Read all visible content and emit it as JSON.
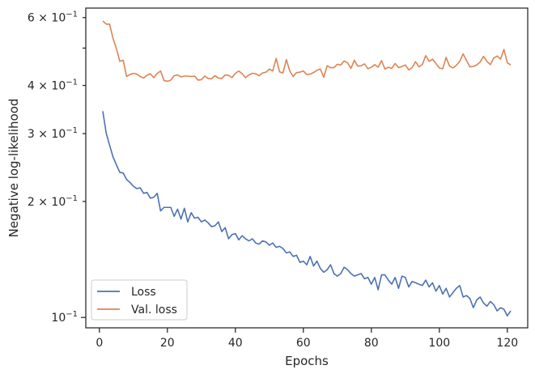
{
  "chart_data": {
    "type": "line",
    "title": "",
    "xlabel": "Epochs",
    "ylabel": "Negative log-likelihood",
    "yscale": "log",
    "xlim": [
      -4.0,
      126.0
    ],
    "ylim": [
      0.094,
      0.635
    ],
    "grid": false,
    "legend_position": "lower-left",
    "x_ticks": [
      0,
      20,
      40,
      60,
      80,
      100,
      120
    ],
    "y_ticks": [
      {
        "value": 0.1,
        "mantissa": "10",
        "exp": "−1",
        "labeled": true
      },
      {
        "value": 0.2,
        "mantissa": "2 × 10",
        "exp": "−1",
        "labeled": true
      },
      {
        "value": 0.3,
        "mantissa": "3 × 10",
        "exp": "−1",
        "labeled": true
      },
      {
        "value": 0.4,
        "mantissa": "4 × 10",
        "exp": "−1",
        "labeled": true
      },
      {
        "value": 0.5,
        "mantissa": "",
        "exp": "",
        "labeled": false
      },
      {
        "value": 0.6,
        "mantissa": "6 × 10",
        "exp": "−1",
        "labeled": true
      }
    ],
    "x": [
      1,
      2,
      3,
      4,
      5,
      6,
      7,
      8,
      9,
      10,
      11,
      12,
      13,
      14,
      15,
      16,
      17,
      18,
      19,
      20,
      21,
      22,
      23,
      24,
      25,
      26,
      27,
      28,
      29,
      30,
      31,
      32,
      33,
      34,
      35,
      36,
      37,
      38,
      39,
      40,
      41,
      42,
      43,
      44,
      45,
      46,
      47,
      48,
      49,
      50,
      51,
      52,
      53,
      54,
      55,
      56,
      57,
      58,
      59,
      60,
      61,
      62,
      63,
      64,
      65,
      66,
      67,
      68,
      69,
      70,
      71,
      72,
      73,
      74,
      75,
      76,
      77,
      78,
      79,
      80,
      81,
      82,
      83,
      84,
      85,
      86,
      87,
      88,
      89,
      90,
      91,
      92,
      93,
      94,
      95,
      96,
      97,
      98,
      99,
      100,
      101,
      102,
      103,
      104,
      105,
      106,
      107,
      108,
      109,
      110,
      111,
      112,
      113,
      114,
      115,
      116,
      117,
      118,
      119,
      120,
      121
    ],
    "series": [
      {
        "name": "Loss",
        "color": "#4c72b0",
        "values": [
          0.343,
          0.301,
          0.28,
          0.261,
          0.249,
          0.238,
          0.237,
          0.228,
          0.224,
          0.219,
          0.216,
          0.217,
          0.21,
          0.211,
          0.204,
          0.205,
          0.21,
          0.189,
          0.193,
          0.193,
          0.193,
          0.183,
          0.191,
          0.18,
          0.192,
          0.177,
          0.187,
          0.181,
          0.182,
          0.177,
          0.179,
          0.176,
          0.172,
          0.173,
          0.177,
          0.167,
          0.171,
          0.16,
          0.164,
          0.165,
          0.159,
          0.163,
          0.16,
          0.158,
          0.16,
          0.156,
          0.155,
          0.158,
          0.157,
          0.154,
          0.156,
          0.152,
          0.153,
          0.151,
          0.147,
          0.148,
          0.144,
          0.145,
          0.139,
          0.14,
          0.137,
          0.144,
          0.136,
          0.14,
          0.134,
          0.131,
          0.133,
          0.137,
          0.13,
          0.128,
          0.13,
          0.135,
          0.133,
          0.13,
          0.128,
          0.129,
          0.13,
          0.126,
          0.127,
          0.122,
          0.127,
          0.118,
          0.129,
          0.129,
          0.125,
          0.122,
          0.127,
          0.119,
          0.128,
          0.127,
          0.12,
          0.124,
          0.123,
          0.122,
          0.121,
          0.125,
          0.12,
          0.123,
          0.117,
          0.121,
          0.115,
          0.119,
          0.113,
          0.116,
          0.119,
          0.121,
          0.113,
          0.114,
          0.112,
          0.106,
          0.111,
          0.113,
          0.109,
          0.107,
          0.11,
          0.108,
          0.104,
          0.106,
          0.105,
          0.101,
          0.104
        ]
      },
      {
        "name": "Val. loss",
        "color": "#dd8452",
        "values": [
          0.588,
          0.577,
          0.577,
          0.53,
          0.499,
          0.462,
          0.465,
          0.422,
          0.427,
          0.43,
          0.428,
          0.422,
          0.418,
          0.425,
          0.429,
          0.419,
          0.43,
          0.436,
          0.412,
          0.41,
          0.413,
          0.424,
          0.426,
          0.421,
          0.423,
          0.423,
          0.422,
          0.423,
          0.413,
          0.414,
          0.423,
          0.417,
          0.416,
          0.424,
          0.418,
          0.417,
          0.426,
          0.425,
          0.419,
          0.43,
          0.436,
          0.429,
          0.419,
          0.426,
          0.43,
          0.429,
          0.424,
          0.431,
          0.433,
          0.441,
          0.436,
          0.47,
          0.434,
          0.431,
          0.467,
          0.436,
          0.422,
          0.432,
          0.433,
          0.436,
          0.427,
          0.428,
          0.432,
          0.438,
          0.441,
          0.42,
          0.45,
          0.445,
          0.445,
          0.454,
          0.452,
          0.463,
          0.458,
          0.443,
          0.465,
          0.449,
          0.45,
          0.455,
          0.442,
          0.446,
          0.453,
          0.446,
          0.464,
          0.441,
          0.446,
          0.443,
          0.456,
          0.445,
          0.448,
          0.452,
          0.439,
          0.445,
          0.461,
          0.447,
          0.453,
          0.478,
          0.462,
          0.468,
          0.456,
          0.444,
          0.442,
          0.473,
          0.449,
          0.444,
          0.451,
          0.462,
          0.483,
          0.464,
          0.447,
          0.448,
          0.452,
          0.46,
          0.476,
          0.462,
          0.453,
          0.471,
          0.477,
          0.468,
          0.496,
          0.458,
          0.452
        ]
      }
    ]
  }
}
